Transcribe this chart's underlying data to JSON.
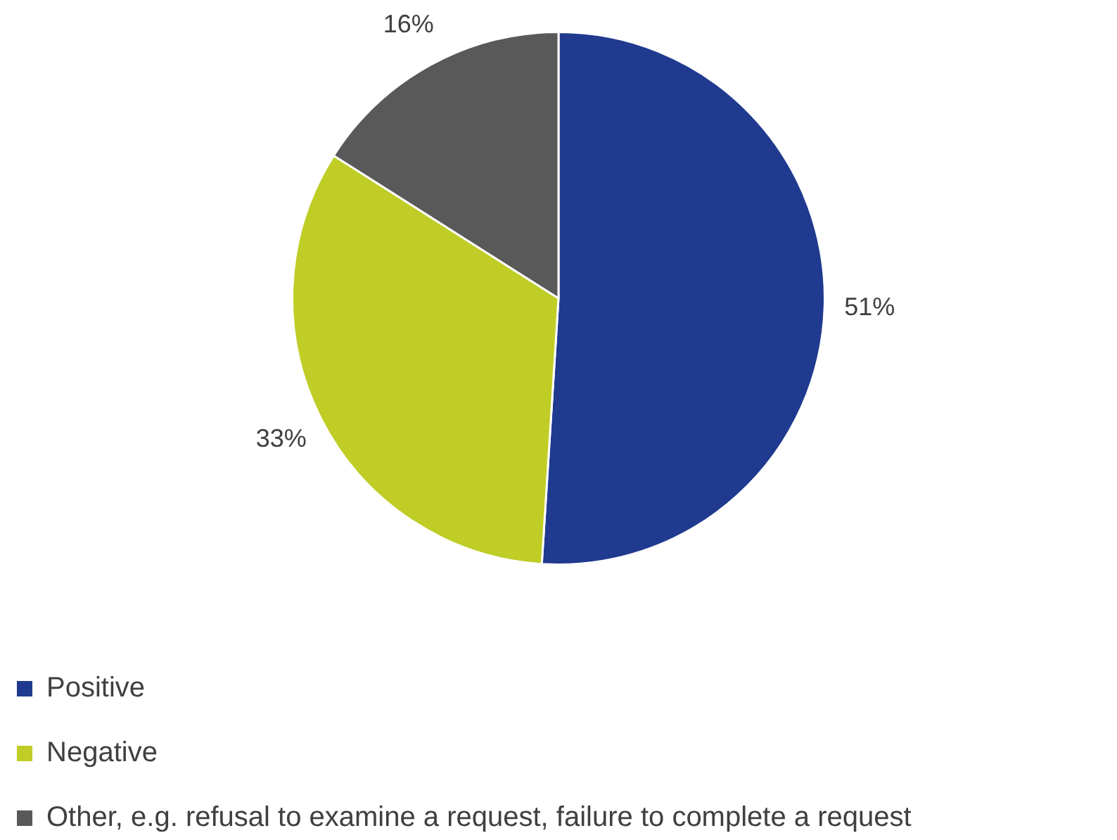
{
  "chart_data": {
    "type": "pie",
    "categories": [
      "Positive",
      "Negative",
      "Other, e.g. refusal to examine a request, failure to complete a request"
    ],
    "values": [
      51,
      33,
      16
    ],
    "value_labels": [
      "51%",
      "33%",
      "16%"
    ],
    "colors": [
      "#1f3a8f",
      "#bfcd26",
      "#595959"
    ],
    "legend": "bottom left"
  }
}
